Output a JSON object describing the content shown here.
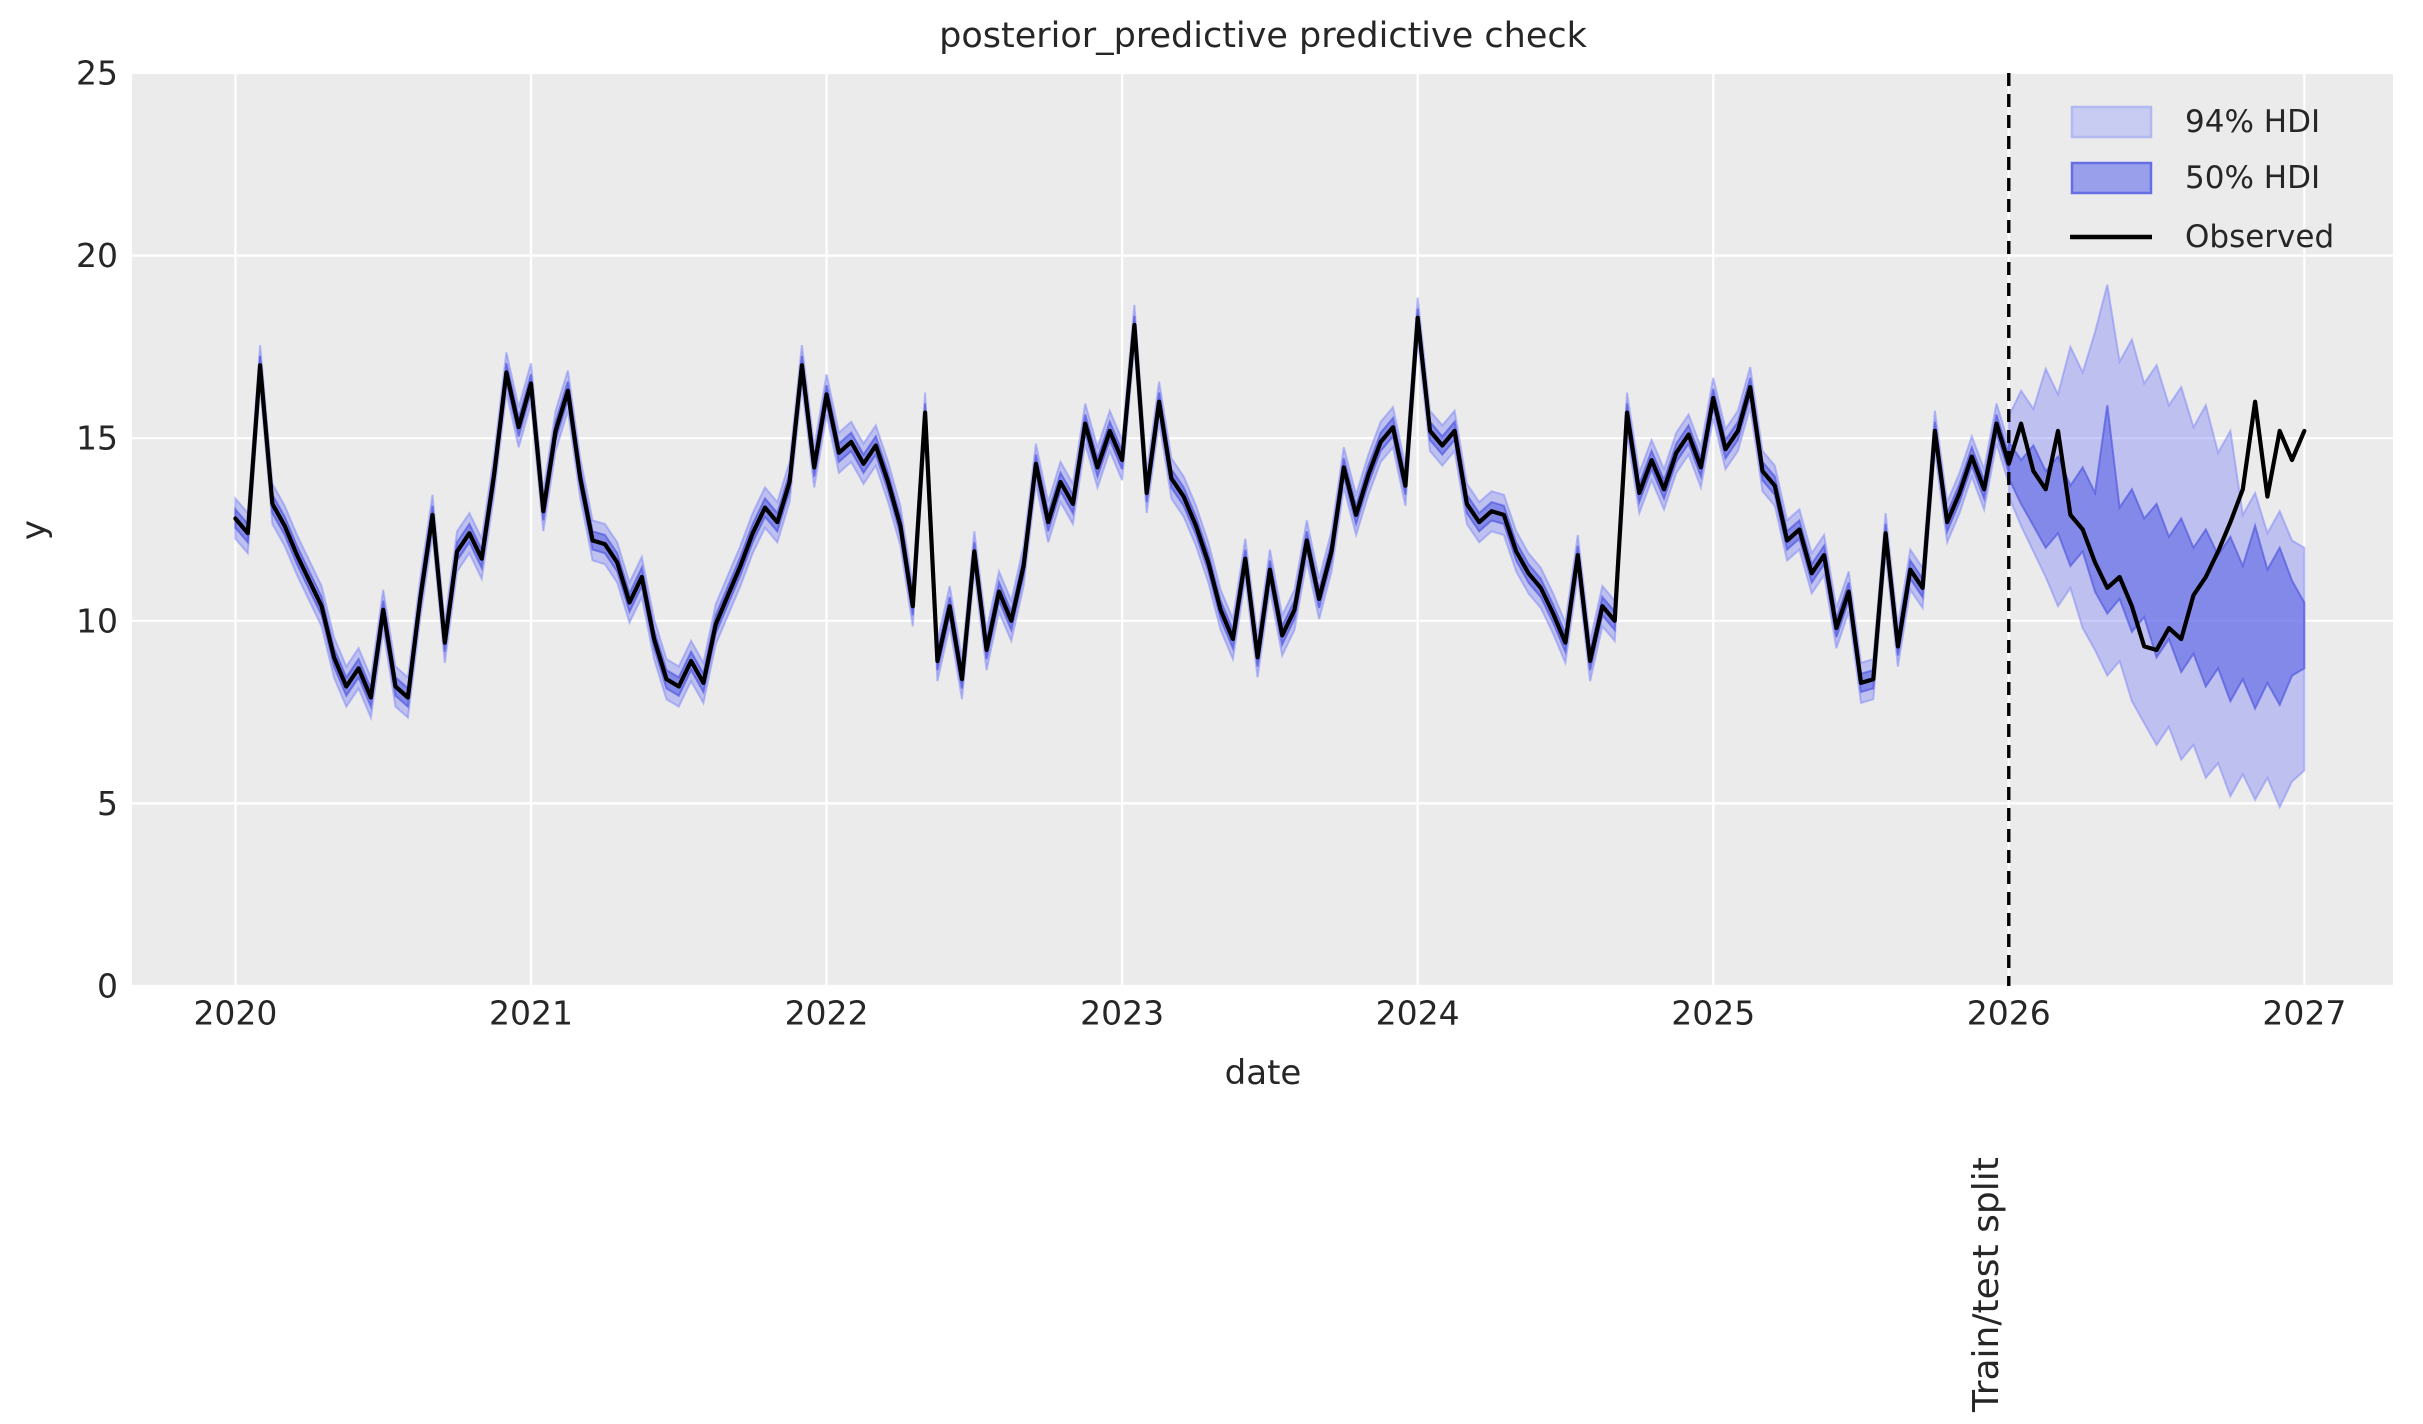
{
  "chart_data": {
    "type": "line",
    "title": "posterior_predictive predictive check",
    "xlabel": "date",
    "ylabel": "y",
    "xlim": [
      2019.65,
      2027.3
    ],
    "ylim": [
      0,
      25
    ],
    "xticks": [
      2020,
      2021,
      2022,
      2023,
      2024,
      2025,
      2026,
      2027
    ],
    "yticks": [
      0,
      5,
      10,
      15,
      20,
      25
    ],
    "grid": true,
    "legend_position": "upper right",
    "legend_entries": [
      "94% HDI",
      "50% HDI",
      "Observed"
    ],
    "split_line": {
      "x": 2026,
      "label": "Train/test split",
      "linestyle": "dashed",
      "color": "#000000"
    },
    "colors": {
      "page_bg": "#ffffff",
      "plot_bg": "#ebebeb",
      "grid": "#ffffff",
      "text": "#262626",
      "observed": "#000000",
      "hdi94_fill": "rgba(123,131,247,0.40)",
      "hdi94_edge": "rgba(123,131,247,0.50)",
      "hdi50_fill": "rgba(95,103,228,0.62)",
      "hdi50_edge": "rgba(82,90,222,0.70)",
      "legend94_fill": "#c8cbf2",
      "legend94_edge": "#b2b8f0",
      "legend50_fill": "#9a9fec",
      "legend50_edge": "#666ee3"
    },
    "observed": {
      "name": "Observed",
      "color": "#000000",
      "x_start": 2020,
      "points_per_year": 24,
      "y": [
        12.8,
        12.4,
        17.0,
        13.2,
        12.6,
        11.8,
        11.1,
        10.4,
        9.0,
        8.2,
        8.7,
        7.9,
        10.3,
        8.2,
        7.9,
        10.6,
        12.9,
        9.4,
        11.9,
        12.4,
        11.7,
        14.0,
        16.8,
        15.3,
        16.5,
        13.0,
        15.2,
        16.3,
        13.9,
        12.2,
        12.1,
        11.6,
        10.5,
        11.2,
        9.5,
        8.4,
        8.2,
        8.9,
        8.3,
        9.9,
        10.7,
        11.5,
        12.4,
        13.1,
        12.7,
        13.8,
        17.0,
        14.2,
        16.2,
        14.6,
        14.9,
        14.3,
        14.8,
        13.8,
        12.6,
        10.4,
        15.7,
        8.9,
        10.4,
        8.4,
        11.9,
        9.2,
        10.8,
        10.0,
        11.5,
        14.3,
        12.7,
        13.8,
        13.2,
        15.4,
        14.2,
        15.2,
        14.4,
        18.1,
        13.5,
        16.0,
        13.9,
        13.4,
        12.6,
        11.6,
        10.3,
        9.5,
        11.7,
        9.0,
        11.4,
        9.6,
        10.3,
        12.2,
        10.6,
        11.9,
        14.2,
        12.9,
        14.0,
        14.9,
        15.3,
        13.7,
        18.3,
        15.2,
        14.8,
        15.2,
        13.2,
        12.7,
        13.0,
        12.9,
        11.9,
        11.3,
        10.9,
        10.2,
        9.4,
        11.8,
        8.9,
        10.4,
        10.0,
        15.7,
        13.5,
        14.4,
        13.6,
        14.6,
        15.1,
        14.2,
        16.1,
        14.7,
        15.2,
        16.4,
        14.1,
        13.7,
        12.2,
        12.5,
        11.3,
        11.8,
        9.8,
        10.8,
        8.3,
        8.4,
        12.4,
        9.3,
        11.4,
        10.9,
        15.2,
        12.7,
        13.5,
        14.5,
        13.6,
        15.4,
        14.3,
        15.4,
        14.1,
        13.6,
        15.2,
        12.9,
        12.5,
        11.6,
        10.9,
        11.2,
        10.4,
        9.3,
        9.2,
        9.8,
        9.5,
        10.7,
        11.2,
        11.9,
        12.7,
        13.6,
        16.0,
        13.4,
        15.2,
        14.4,
        15.2
      ]
    },
    "train_hdi": {
      "x_start": 2020,
      "x_end": 2026,
      "hdi94_halfwidth": 0.55,
      "hdi50_halfwidth": 0.25
    },
    "forecast_hdi": {
      "x_start": 2026,
      "points_per_year": 24,
      "hdi94_upper": [
        15.6,
        16.3,
        15.8,
        16.9,
        16.2,
        17.5,
        16.8,
        17.9,
        19.2,
        17.1,
        17.7,
        16.5,
        17.0,
        15.9,
        16.4,
        15.3,
        15.9,
        14.6,
        15.2,
        12.9,
        13.5,
        12.4,
        13.0,
        12.2,
        12.0
      ],
      "hdi94_lower": [
        13.4,
        12.6,
        11.9,
        11.2,
        10.4,
        10.9,
        9.8,
        9.2,
        8.5,
        8.9,
        7.8,
        7.2,
        6.6,
        7.1,
        6.2,
        6.6,
        5.7,
        6.1,
        5.2,
        5.8,
        5.1,
        5.7,
        4.9,
        5.6,
        5.9
      ],
      "hdi50_upper": [
        14.9,
        14.4,
        14.8,
        14.1,
        14.5,
        13.7,
        14.2,
        13.5,
        15.9,
        13.1,
        13.6,
        12.8,
        13.2,
        12.3,
        12.8,
        12.0,
        12.5,
        11.8,
        12.3,
        11.5,
        12.6,
        11.4,
        12.0,
        11.1,
        10.5
      ],
      "hdi50_lower": [
        13.9,
        13.2,
        12.6,
        12.0,
        12.4,
        11.5,
        11.9,
        10.8,
        10.2,
        10.6,
        9.7,
        10.1,
        9.0,
        9.5,
        8.6,
        9.1,
        8.2,
        8.7,
        7.8,
        8.4,
        7.6,
        8.3,
        7.7,
        8.5,
        8.7
      ]
    }
  }
}
